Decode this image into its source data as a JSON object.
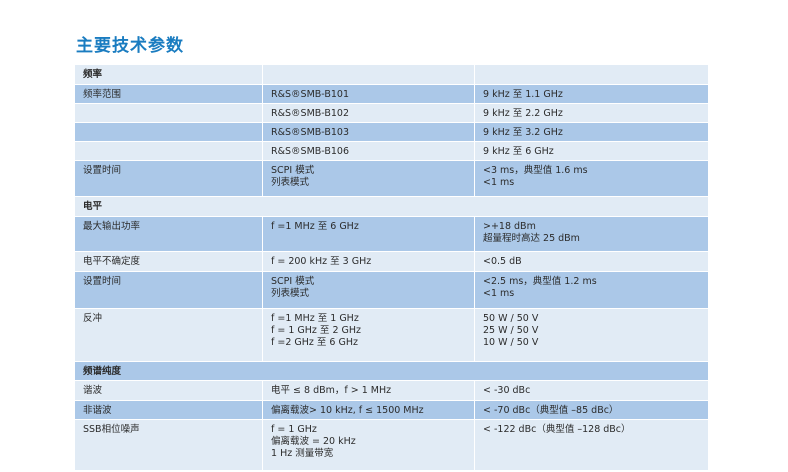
{
  "title": "主要技术参数",
  "colors": {
    "title": "#1a7cc0",
    "row_light": "#e1ebf5",
    "row_dark": "#abc8e8"
  },
  "sections": [
    {
      "header": "频率",
      "rows": [
        {
          "param": "频率范围",
          "condition": [
            "R&S®SMB-B101"
          ],
          "value": [
            "9 kHz 至 1.1 GHz"
          ]
        },
        {
          "param": "",
          "condition": [
            "R&S®SMB-B102"
          ],
          "value": [
            "9 kHz 至 2.2 GHz"
          ]
        },
        {
          "param": "",
          "condition": [
            "R&S®SMB-B103"
          ],
          "value": [
            "9 kHz 至 3.2 GHz"
          ]
        },
        {
          "param": "",
          "condition": [
            "R&S®SMB-B106"
          ],
          "value": [
            "9 kHz 至 6 GHz"
          ]
        },
        {
          "param": "设置时间",
          "condition": [
            "SCPI 模式",
            "列表模式"
          ],
          "value": [
            "<3 ms，典型值 1.6 ms",
            "<1 ms"
          ]
        }
      ]
    },
    {
      "header": "电平",
      "rows": [
        {
          "param": "最大输出功率",
          "condition": [
            "f =1 MHz 至 6 GHz"
          ],
          "value": [
            ">+18 dBm",
            "超量程时高达 25 dBm"
          ]
        },
        {
          "param": "电平不确定度",
          "condition": [
            "f = 200 kHz 至 3 GHz"
          ],
          "value": [
            "<0.5 dB"
          ]
        },
        {
          "param": "设置时间",
          "condition": [
            "SCPI 模式",
            "列表模式"
          ],
          "value": [
            "<2.5 ms，典型值 1.2 ms",
            "<1 ms"
          ]
        },
        {
          "param": "反冲",
          "condition": [
            "f =1 MHz 至 1 GHz",
            "f = 1 GHz 至 2 GHz",
            "f =2 GHz 至 6 GHz"
          ],
          "value": [
            "50 W / 50 V",
            "25 W / 50 V",
            "10 W / 50 V"
          ]
        }
      ]
    },
    {
      "header": "频谱纯度",
      "rows": [
        {
          "param": "谐波",
          "condition": [
            "电平 ≤ 8 dBm，f > 1 MHz"
          ],
          "value": [
            "< -30 dBc"
          ]
        },
        {
          "param": "非谐波",
          "condition": [
            "偏离载波> 10 kHz, f ≤ 1500 MHz"
          ],
          "value": [
            "< -70 dBc（典型值 –85 dBc）"
          ]
        },
        {
          "param": "SSB相位噪声",
          "condition": [
            "f = 1 GHz",
            "偏离载波 = 20 kHz",
            "1 Hz 测量带宽"
          ],
          "value": [
            "< -122 dBc（典型值 –128 dBc）"
          ]
        }
      ]
    }
  ]
}
